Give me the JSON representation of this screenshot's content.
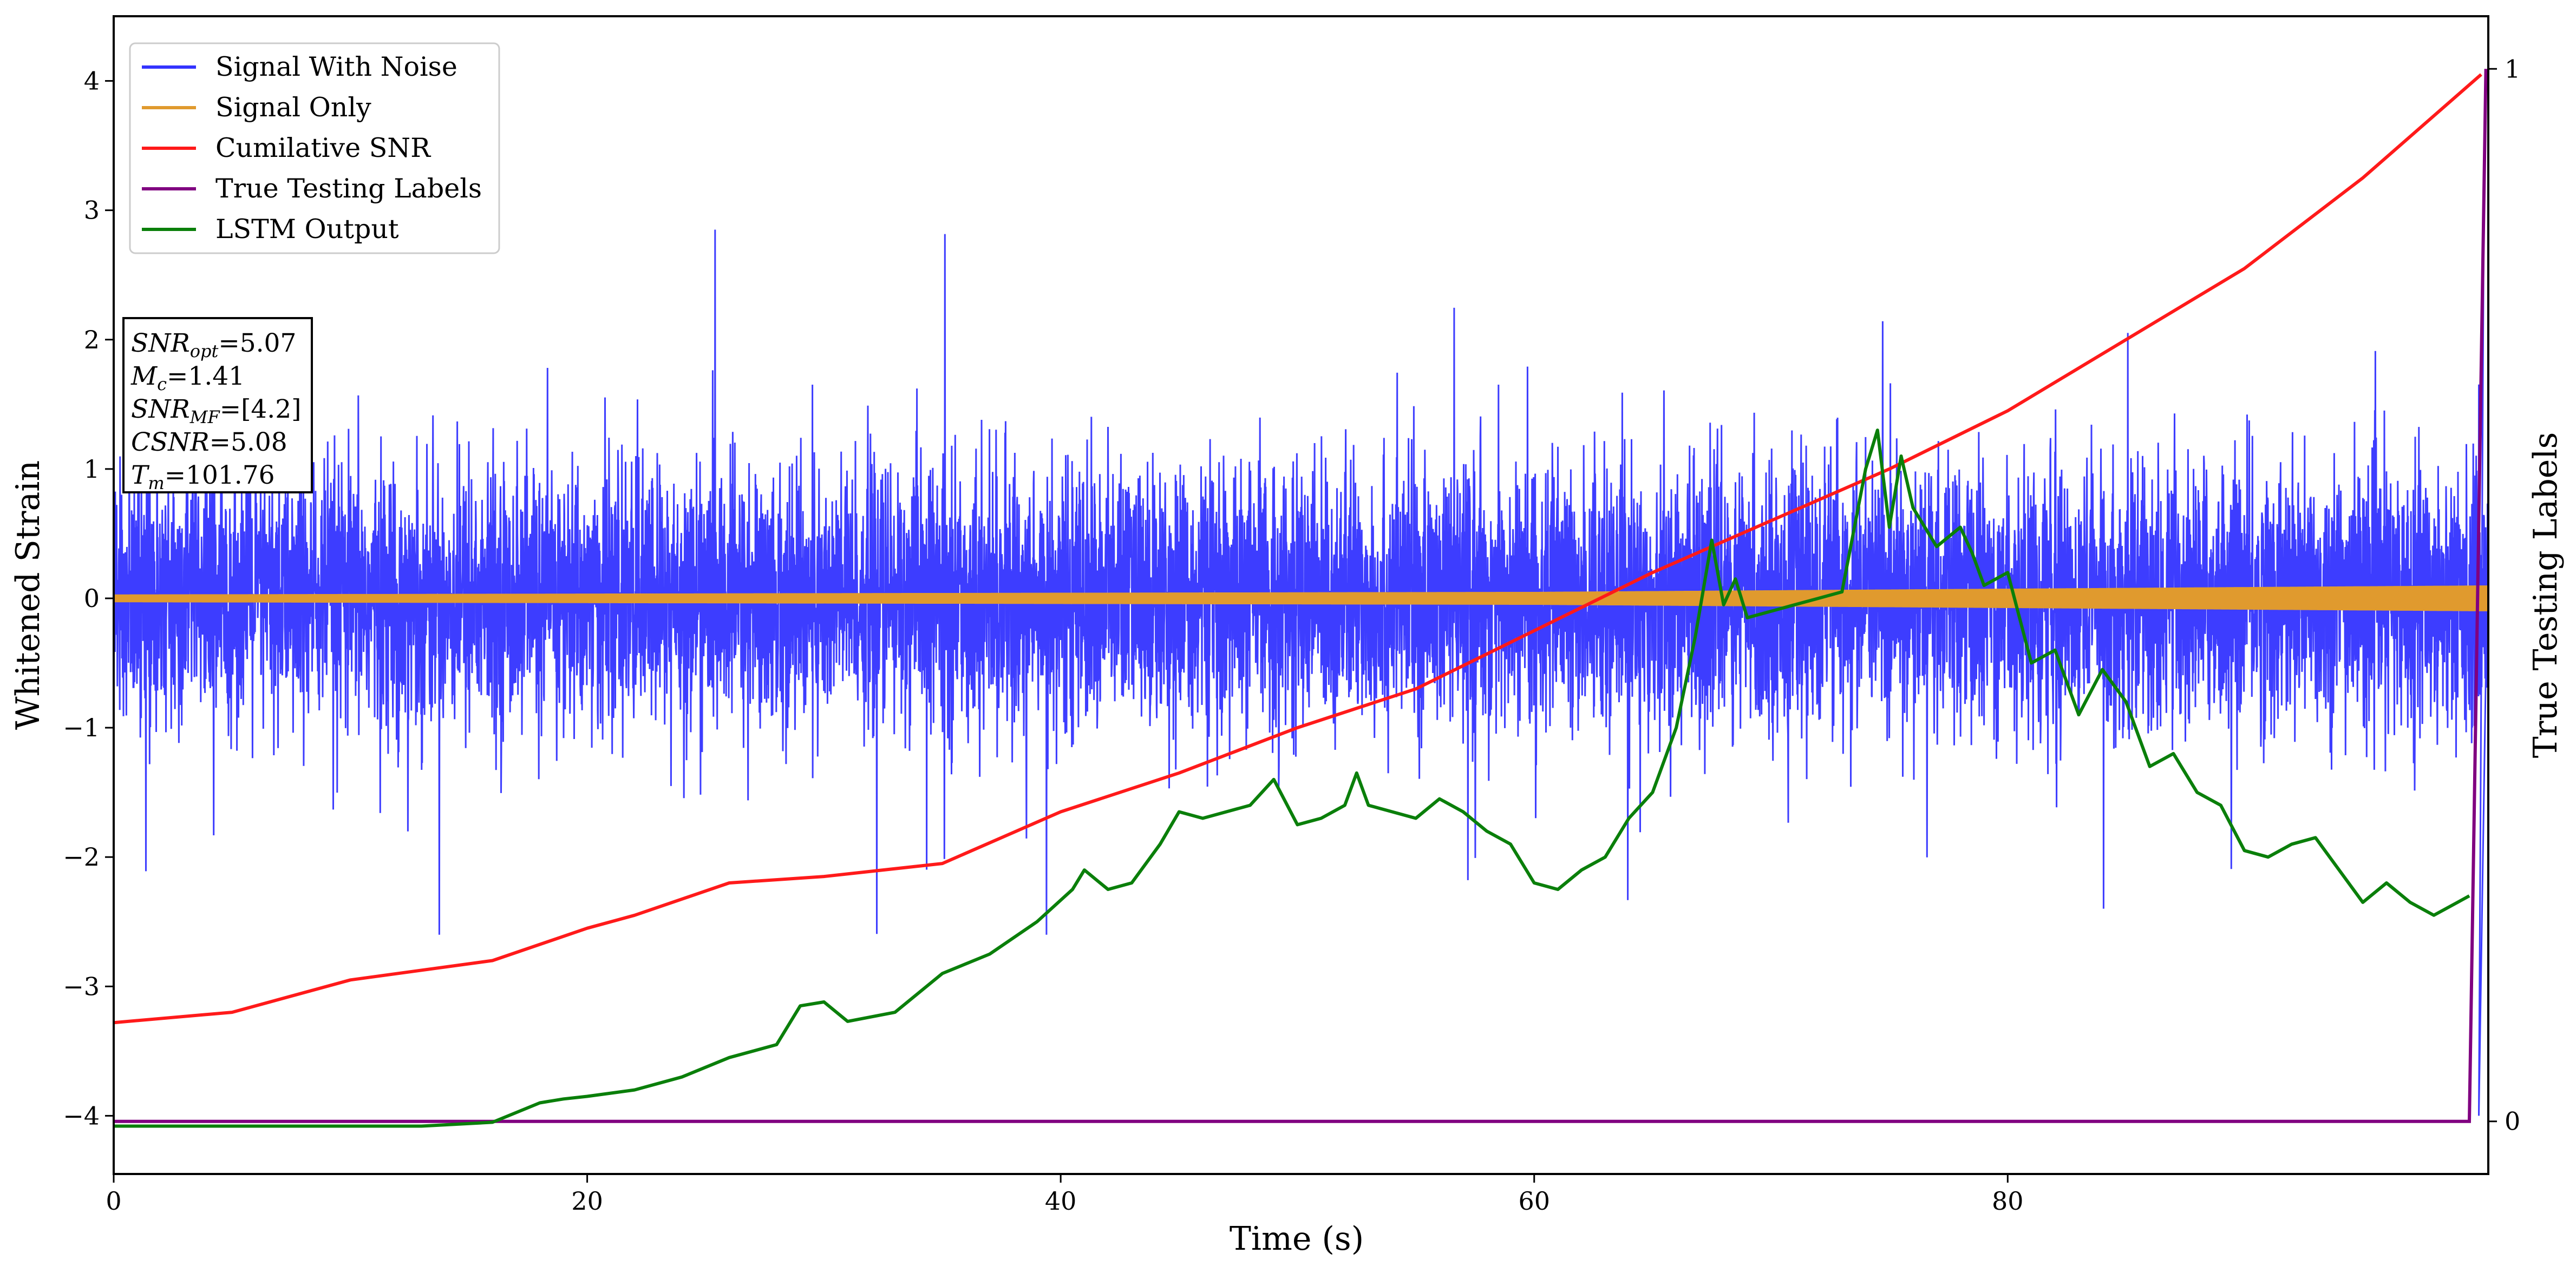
{
  "chart_data": {
    "type": "line",
    "xlabel": "Time (s)",
    "ylabel": "Whitened Strain",
    "y2label": "True Testing Labels",
    "xlim": [
      0,
      100.3
    ],
    "ylim": [
      -4.45,
      4.5
    ],
    "y2lim": [
      -0.05,
      1.05
    ],
    "xticks": [
      0,
      20,
      40,
      60,
      80
    ],
    "yticks": [
      -4,
      -3,
      -2,
      -1,
      0,
      1,
      2,
      3,
      4
    ],
    "y2ticks": [
      0,
      1
    ],
    "legend_position": "upper-left",
    "colors": {
      "signal_with_noise": "#3333ff",
      "signal_only": "#e09a2e",
      "cumulative_snr": "#ff1a1a",
      "true_labels": "#800080",
      "lstm_output": "#0a7f0a"
    },
    "annotation": [
      {
        "sym": "SNR",
        "sub": "opt",
        "eq": "=5.07"
      },
      {
        "sym": "M",
        "sub": "c",
        "eq": "=1.41"
      },
      {
        "sym": "SNR",
        "sub": "MF",
        "eq": "=[4.2]"
      },
      {
        "sym": "CSNR",
        "sub": "",
        "eq": "=5.08"
      },
      {
        "sym": "T",
        "sub": "m",
        "eq": "=101.76"
      }
    ],
    "series": [
      {
        "key": "signal_with_noise",
        "name": "Signal With Noise",
        "noise_sigma": 0.5,
        "range": [
          -2.6,
          2.85
        ],
        "x_range": [
          0,
          100.3
        ]
      },
      {
        "key": "signal_only",
        "name": "Signal Only",
        "envelope": {
          "x": [
            0,
            60,
            100.3
          ],
          "amp": [
            0.03,
            0.05,
            0.1
          ]
        }
      },
      {
        "key": "cumulative_snr",
        "name": "Cumilative SNR",
        "x": [
          0,
          5,
          10,
          16,
          20,
          22,
          26,
          30,
          35,
          40,
          45,
          50,
          55,
          60,
          65,
          70,
          75,
          80,
          85,
          90,
          95,
          100
        ],
        "y": [
          -3.28,
          -3.2,
          -2.95,
          -2.8,
          -2.55,
          -2.45,
          -2.2,
          -2.15,
          -2.05,
          -1.65,
          -1.35,
          -1.0,
          -0.7,
          -0.25,
          0.2,
          0.6,
          1.0,
          1.45,
          2.0,
          2.55,
          3.25,
          4.05
        ]
      },
      {
        "key": "true_labels",
        "name": "True Testing Labels",
        "axis": "right",
        "x": [
          0,
          99.5,
          100.2
        ],
        "y": [
          0,
          0,
          1
        ]
      },
      {
        "key": "lstm_output",
        "name": "LSTM Output",
        "x": [
          0,
          13,
          16,
          18,
          19,
          20,
          22,
          24,
          26,
          28,
          29,
          30,
          31,
          33,
          35,
          37,
          39,
          40.5,
          41,
          42,
          43,
          44.2,
          45,
          46,
          48,
          49,
          50,
          51,
          52,
          52.5,
          53,
          54,
          55,
          56,
          57,
          58,
          59,
          60,
          61,
          62,
          63,
          64,
          65,
          66,
          66.8,
          67.5,
          68,
          68.5,
          69,
          70,
          71,
          72,
          73,
          74,
          74.5,
          75,
          75.5,
          76,
          77,
          78,
          78.5,
          79,
          80,
          81,
          82,
          83,
          84,
          85,
          86,
          87,
          88,
          89,
          90,
          91,
          92,
          93,
          94,
          95,
          96,
          97,
          98,
          99,
          99.5
        ],
        "y": [
          -4.08,
          -4.08,
          -4.05,
          -3.9,
          -3.87,
          -3.85,
          -3.8,
          -3.7,
          -3.55,
          -3.45,
          -3.15,
          -3.12,
          -3.27,
          -3.2,
          -2.9,
          -2.75,
          -2.5,
          -2.25,
          -2.1,
          -2.25,
          -2.2,
          -1.9,
          -1.65,
          -1.7,
          -1.6,
          -1.4,
          -1.75,
          -1.7,
          -1.6,
          -1.35,
          -1.6,
          -1.65,
          -1.7,
          -1.55,
          -1.65,
          -1.8,
          -1.9,
          -2.2,
          -2.25,
          -2.1,
          -2.0,
          -1.7,
          -1.5,
          -1.0,
          -0.3,
          0.45,
          -0.05,
          0.15,
          -0.15,
          -0.1,
          -0.05,
          0.0,
          0.05,
          1.0,
          1.3,
          0.55,
          1.1,
          0.7,
          0.4,
          0.55,
          0.35,
          0.1,
          0.2,
          -0.5,
          -0.4,
          -0.9,
          -0.55,
          -0.8,
          -1.3,
          -1.2,
          -1.5,
          -1.6,
          -1.95,
          -2.0,
          -1.9,
          -1.85,
          -2.1,
          -2.35,
          -2.2,
          -2.35,
          -2.45,
          -2.35,
          -2.3
        ]
      }
    ]
  }
}
